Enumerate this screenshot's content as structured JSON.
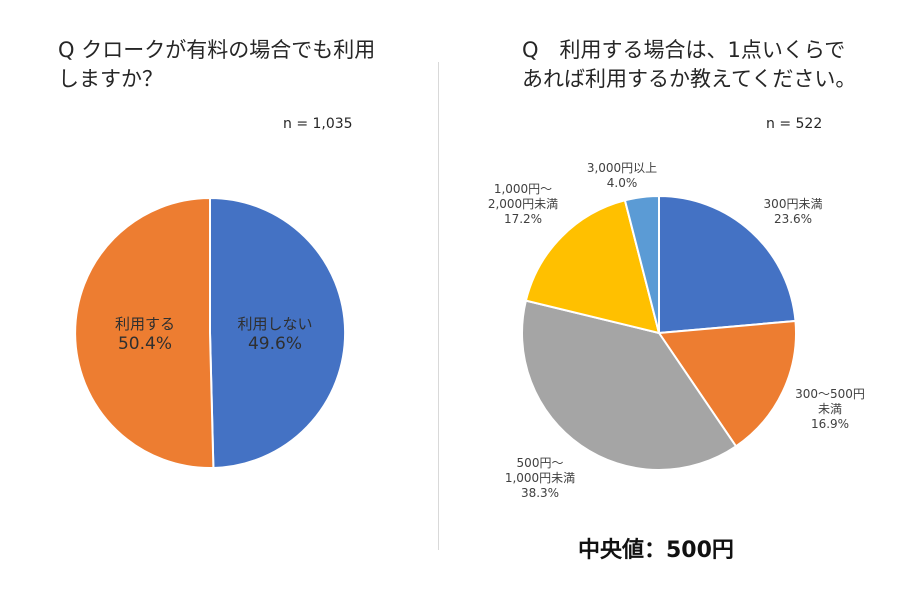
{
  "left": {
    "title_lines": [
      "Q クロークが有料の場合でも利用",
      "しますか？"
    ],
    "n_label": "n = 1,035"
  },
  "right": {
    "title_lines": [
      "Q　利用する場合は、1点いくらで",
      "あれば利用するか教えてください。"
    ],
    "n_label": "n = 522",
    "median_label": "中央値：500円"
  },
  "chart_data": [
    {
      "type": "pie",
      "title": "Q クロークが有料の場合でも利用しますか？",
      "n": "n = 1,035",
      "slices": [
        {
          "label": "利用しない",
          "value": 49.6,
          "value_label": "49.6%",
          "color": "#4472C4"
        },
        {
          "label": "利用する",
          "value": 50.4,
          "value_label": "50.4%",
          "color": "#ED7D31"
        }
      ]
    },
    {
      "type": "pie",
      "title": "Q　利用する場合は、1点いくらであれば利用するか教えてください。",
      "n": "n = 522",
      "slices": [
        {
          "label_lines": [
            "300円未満"
          ],
          "value": 23.6,
          "value_label": "23.6%",
          "color": "#4472C4"
        },
        {
          "label_lines": [
            "300～500円",
            "未満"
          ],
          "value": 16.9,
          "value_label": "16.9%",
          "color": "#ED7D31"
        },
        {
          "label_lines": [
            "500円～",
            "1,000円未満"
          ],
          "value": 38.3,
          "value_label": "38.3%",
          "color": "#A5A5A5"
        },
        {
          "label_lines": [
            "1,000円～",
            "2,000円未満"
          ],
          "value": 17.2,
          "value_label": "17.2%",
          "color": "#FFC000"
        },
        {
          "label_lines": [
            "3,000円以上"
          ],
          "value": 4.0,
          "value_label": "4.0%",
          "color": "#5B9BD5"
        }
      ]
    }
  ]
}
